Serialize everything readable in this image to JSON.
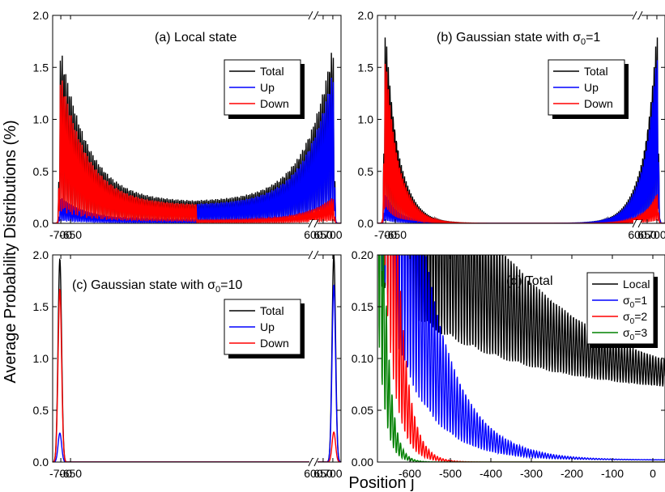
{
  "figure": {
    "ylabel": "Average Probability Distributions (%)",
    "xlabel": "Position j"
  },
  "chart_data": [
    {
      "type": "line",
      "panel": "a",
      "annotation": "(a) Local state",
      "xlim": [
        -742,
        742
      ],
      "ylim": [
        0,
        2.0
      ],
      "axis_break_at": 600,
      "xticks": [
        -700,
        -650,
        600,
        650,
        700
      ],
      "xtick_labels": [
        "-700",
        "-650",
        "600",
        "650",
        "700"
      ],
      "yticks": [
        0.0,
        0.5,
        1.0,
        1.5,
        2.0
      ],
      "ytick_labels": [
        "0.0",
        "0.5",
        "1.0",
        "1.5",
        "2.0"
      ],
      "legend": "top-right",
      "series": [
        {
          "name": "Total",
          "color": "#000000",
          "x": [
            -700,
            600,
            700
          ],
          "y": [
            1.75,
            0.38,
            1.78
          ]
        },
        {
          "name": "Up",
          "color": "#0000ff",
          "x": [
            -700,
            600,
            700
          ],
          "y": [
            0.26,
            0.1,
            1.52
          ]
        },
        {
          "name": "Down",
          "color": "#ff0000",
          "x": [
            -700,
            600,
            700
          ],
          "y": [
            1.49,
            0.28,
            0.26
          ]
        }
      ]
    },
    {
      "type": "line",
      "panel": "b",
      "annotation": "(b) Gaussian state with ",
      "annotation_sigma": "σ",
      "annotation_sigma_sub": "0",
      "annotation_tail": "=1",
      "xlim": [
        -742,
        742
      ],
      "ylim": [
        0,
        2.0
      ],
      "axis_break_at": 600,
      "xticks": [
        -700,
        -650,
        600,
        650,
        700
      ],
      "xtick_labels": [
        "-700",
        "-650",
        "600",
        "650",
        "700"
      ],
      "yticks": [
        0.0,
        0.5,
        1.0,
        1.5,
        2.0
      ],
      "ytick_labels": [
        "0.0",
        "0.5",
        "1.0",
        "1.5",
        "2.0"
      ],
      "legend": "top-right",
      "series": [
        {
          "name": "Total",
          "color": "#000000",
          "x": [
            -700,
            600,
            703
          ],
          "y": [
            2.05,
            0.02,
            2.05
          ]
        },
        {
          "name": "Up",
          "color": "#0000ff",
          "x": [
            -700,
            600,
            703
          ],
          "y": [
            0.31,
            0.01,
            1.8
          ]
        },
        {
          "name": "Down",
          "color": "#ff0000",
          "x": [
            -700,
            600,
            703
          ],
          "y": [
            1.76,
            0.01,
            0.32
          ]
        }
      ]
    },
    {
      "type": "line",
      "panel": "c",
      "annotation": "(c) Gaussian state with ",
      "annotation_sigma": "σ",
      "annotation_sigma_sub": "0",
      "annotation_tail": "=10",
      "xlim": [
        -742,
        742
      ],
      "ylim": [
        0,
        2.0
      ],
      "axis_break_at": 600,
      "xticks": [
        -700,
        -650,
        600,
        650,
        700
      ],
      "xtick_labels": [
        "-700",
        "-650",
        "600",
        "650",
        "700"
      ],
      "yticks": [
        0.0,
        0.5,
        1.0,
        1.5,
        2.0
      ],
      "ytick_labels": [
        "0.0",
        "0.5",
        "1.0",
        "1.5",
        "2.0"
      ],
      "legend": "top-right",
      "series": [
        {
          "name": "Total",
          "color": "#000000",
          "x": [
            -705,
            705
          ],
          "y": [
            1.96,
            2.0
          ]
        },
        {
          "name": "Up",
          "color": "#0000ff",
          "x": [
            -705,
            705
          ],
          "y": [
            0.28,
            1.71
          ]
        },
        {
          "name": "Down",
          "color": "#ff0000",
          "x": [
            -705,
            705
          ],
          "y": [
            1.67,
            0.29
          ]
        }
      ]
    },
    {
      "type": "line",
      "panel": "d",
      "annotation": "(d) Total",
      "xlim": [
        -680,
        30
      ],
      "ylim": [
        0,
        0.2
      ],
      "xticks": [
        -600,
        -500,
        -400,
        -300,
        -200,
        -100,
        0
      ],
      "xtick_labels": [
        "-600",
        "-500",
        "-400",
        "-300",
        "-200",
        "-100",
        "0"
      ],
      "yticks": [
        0.0,
        0.05,
        0.1,
        0.15,
        0.2
      ],
      "ytick_labels": [
        "0.00",
        "0.05",
        "0.10",
        "0.15",
        "0.20"
      ],
      "legend": "top-right",
      "series": [
        {
          "name": "Local",
          "color": "#000000",
          "x": [
            -600,
            -400,
            -200,
            0
          ],
          "y": [
            0.2,
            0.1,
            0.068,
            0.064
          ]
        },
        {
          "name_symbol": "σ",
          "name_sub": "0",
          "name_tail": "=1",
          "color": "#0000ff",
          "x": [
            -600,
            -400,
            -200,
            0
          ],
          "y": [
            0.2,
            0.02,
            0.004,
            0.002
          ]
        },
        {
          "name_symbol": "σ",
          "name_sub": "0",
          "name_tail": "=2",
          "color": "#ff0000",
          "x": [
            -640,
            -560,
            -500,
            -400
          ],
          "y": [
            0.2,
            0.01,
            0.002,
            0.0
          ]
        },
        {
          "name_symbol": "σ",
          "name_sub": "0",
          "name_tail": "=3",
          "color": "#008000",
          "x": [
            -670,
            -620,
            -560,
            -500
          ],
          "y": [
            0.2,
            0.01,
            0.001,
            0.0
          ]
        }
      ]
    }
  ]
}
